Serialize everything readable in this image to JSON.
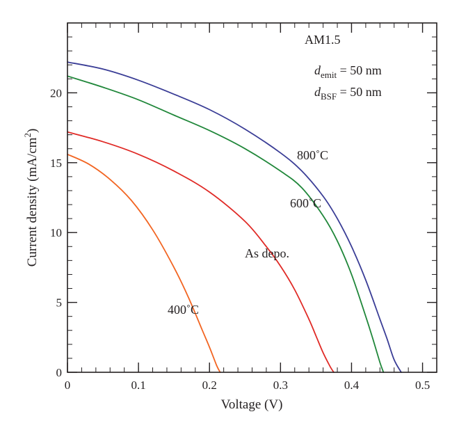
{
  "chart_data": {
    "type": "line",
    "xlabel": "Voltage (V)",
    "ylabel_main": "Current density (mA/cm",
    "ylabel_sup": "2",
    "ylabel_close": ")",
    "xlim": [
      0,
      0.52
    ],
    "ylim": [
      0,
      25
    ],
    "x_ticks": [
      0,
      0.1,
      0.2,
      0.3,
      0.4,
      0.5
    ],
    "x_tick_labels": [
      "0",
      "0.1",
      "0.2",
      "0.3",
      "0.4",
      "0.5"
    ],
    "y_ticks": [
      0,
      5,
      10,
      15,
      20
    ],
    "y_tick_labels": [
      "0",
      "5",
      "10",
      "15",
      "20"
    ],
    "x_minor_step": 0.02,
    "y_minor_step": 1,
    "grid": false,
    "annotations": {
      "spectrum": "AM1.5",
      "d_emit": {
        "var": "d",
        "sub": "emit",
        "value": " = 50 nm"
      },
      "d_bsf": {
        "var": "d",
        "sub": "BSF",
        "value": " = 50 nm"
      }
    },
    "series": [
      {
        "name": "800˚C",
        "color": "#3a3d96",
        "x": [
          0,
          0.05,
          0.1,
          0.15,
          0.2,
          0.25,
          0.3,
          0.33,
          0.36,
          0.38,
          0.4,
          0.42,
          0.44,
          0.45,
          0.46,
          0.47
        ],
        "y": [
          22.2,
          21.7,
          20.9,
          19.9,
          18.8,
          17.4,
          15.7,
          14.4,
          12.6,
          11.0,
          9.0,
          6.6,
          3.8,
          2.4,
          0.9,
          0
        ]
      },
      {
        "name": "600˚C",
        "color": "#20873a",
        "x": [
          0,
          0.05,
          0.1,
          0.15,
          0.2,
          0.25,
          0.3,
          0.33,
          0.36,
          0.38,
          0.4,
          0.42,
          0.43,
          0.44,
          0.445
        ],
        "y": [
          21.2,
          20.4,
          19.5,
          18.4,
          17.3,
          16.0,
          14.4,
          13.2,
          11.2,
          9.4,
          7.0,
          4.0,
          2.4,
          0.7,
          0
        ]
      },
      {
        "name": "As depo.",
        "color": "#e02a26",
        "x": [
          0,
          0.05,
          0.1,
          0.15,
          0.2,
          0.25,
          0.28,
          0.3,
          0.32,
          0.34,
          0.35,
          0.36,
          0.37,
          0.375
        ],
        "y": [
          17.2,
          16.5,
          15.6,
          14.4,
          12.9,
          10.8,
          9.0,
          7.6,
          5.9,
          3.8,
          2.6,
          1.4,
          0.4,
          0
        ]
      },
      {
        "name": "400˚C",
        "color": "#f26522",
        "x": [
          0,
          0.03,
          0.06,
          0.09,
          0.12,
          0.15,
          0.17,
          0.19,
          0.2,
          0.21,
          0.215
        ],
        "y": [
          15.6,
          14.9,
          13.8,
          12.3,
          10.2,
          7.5,
          5.4,
          3.0,
          1.8,
          0.5,
          0
        ]
      }
    ],
    "series_labels": [
      "800˚C",
      "600˚C",
      "As depo.",
      "400˚C"
    ]
  }
}
